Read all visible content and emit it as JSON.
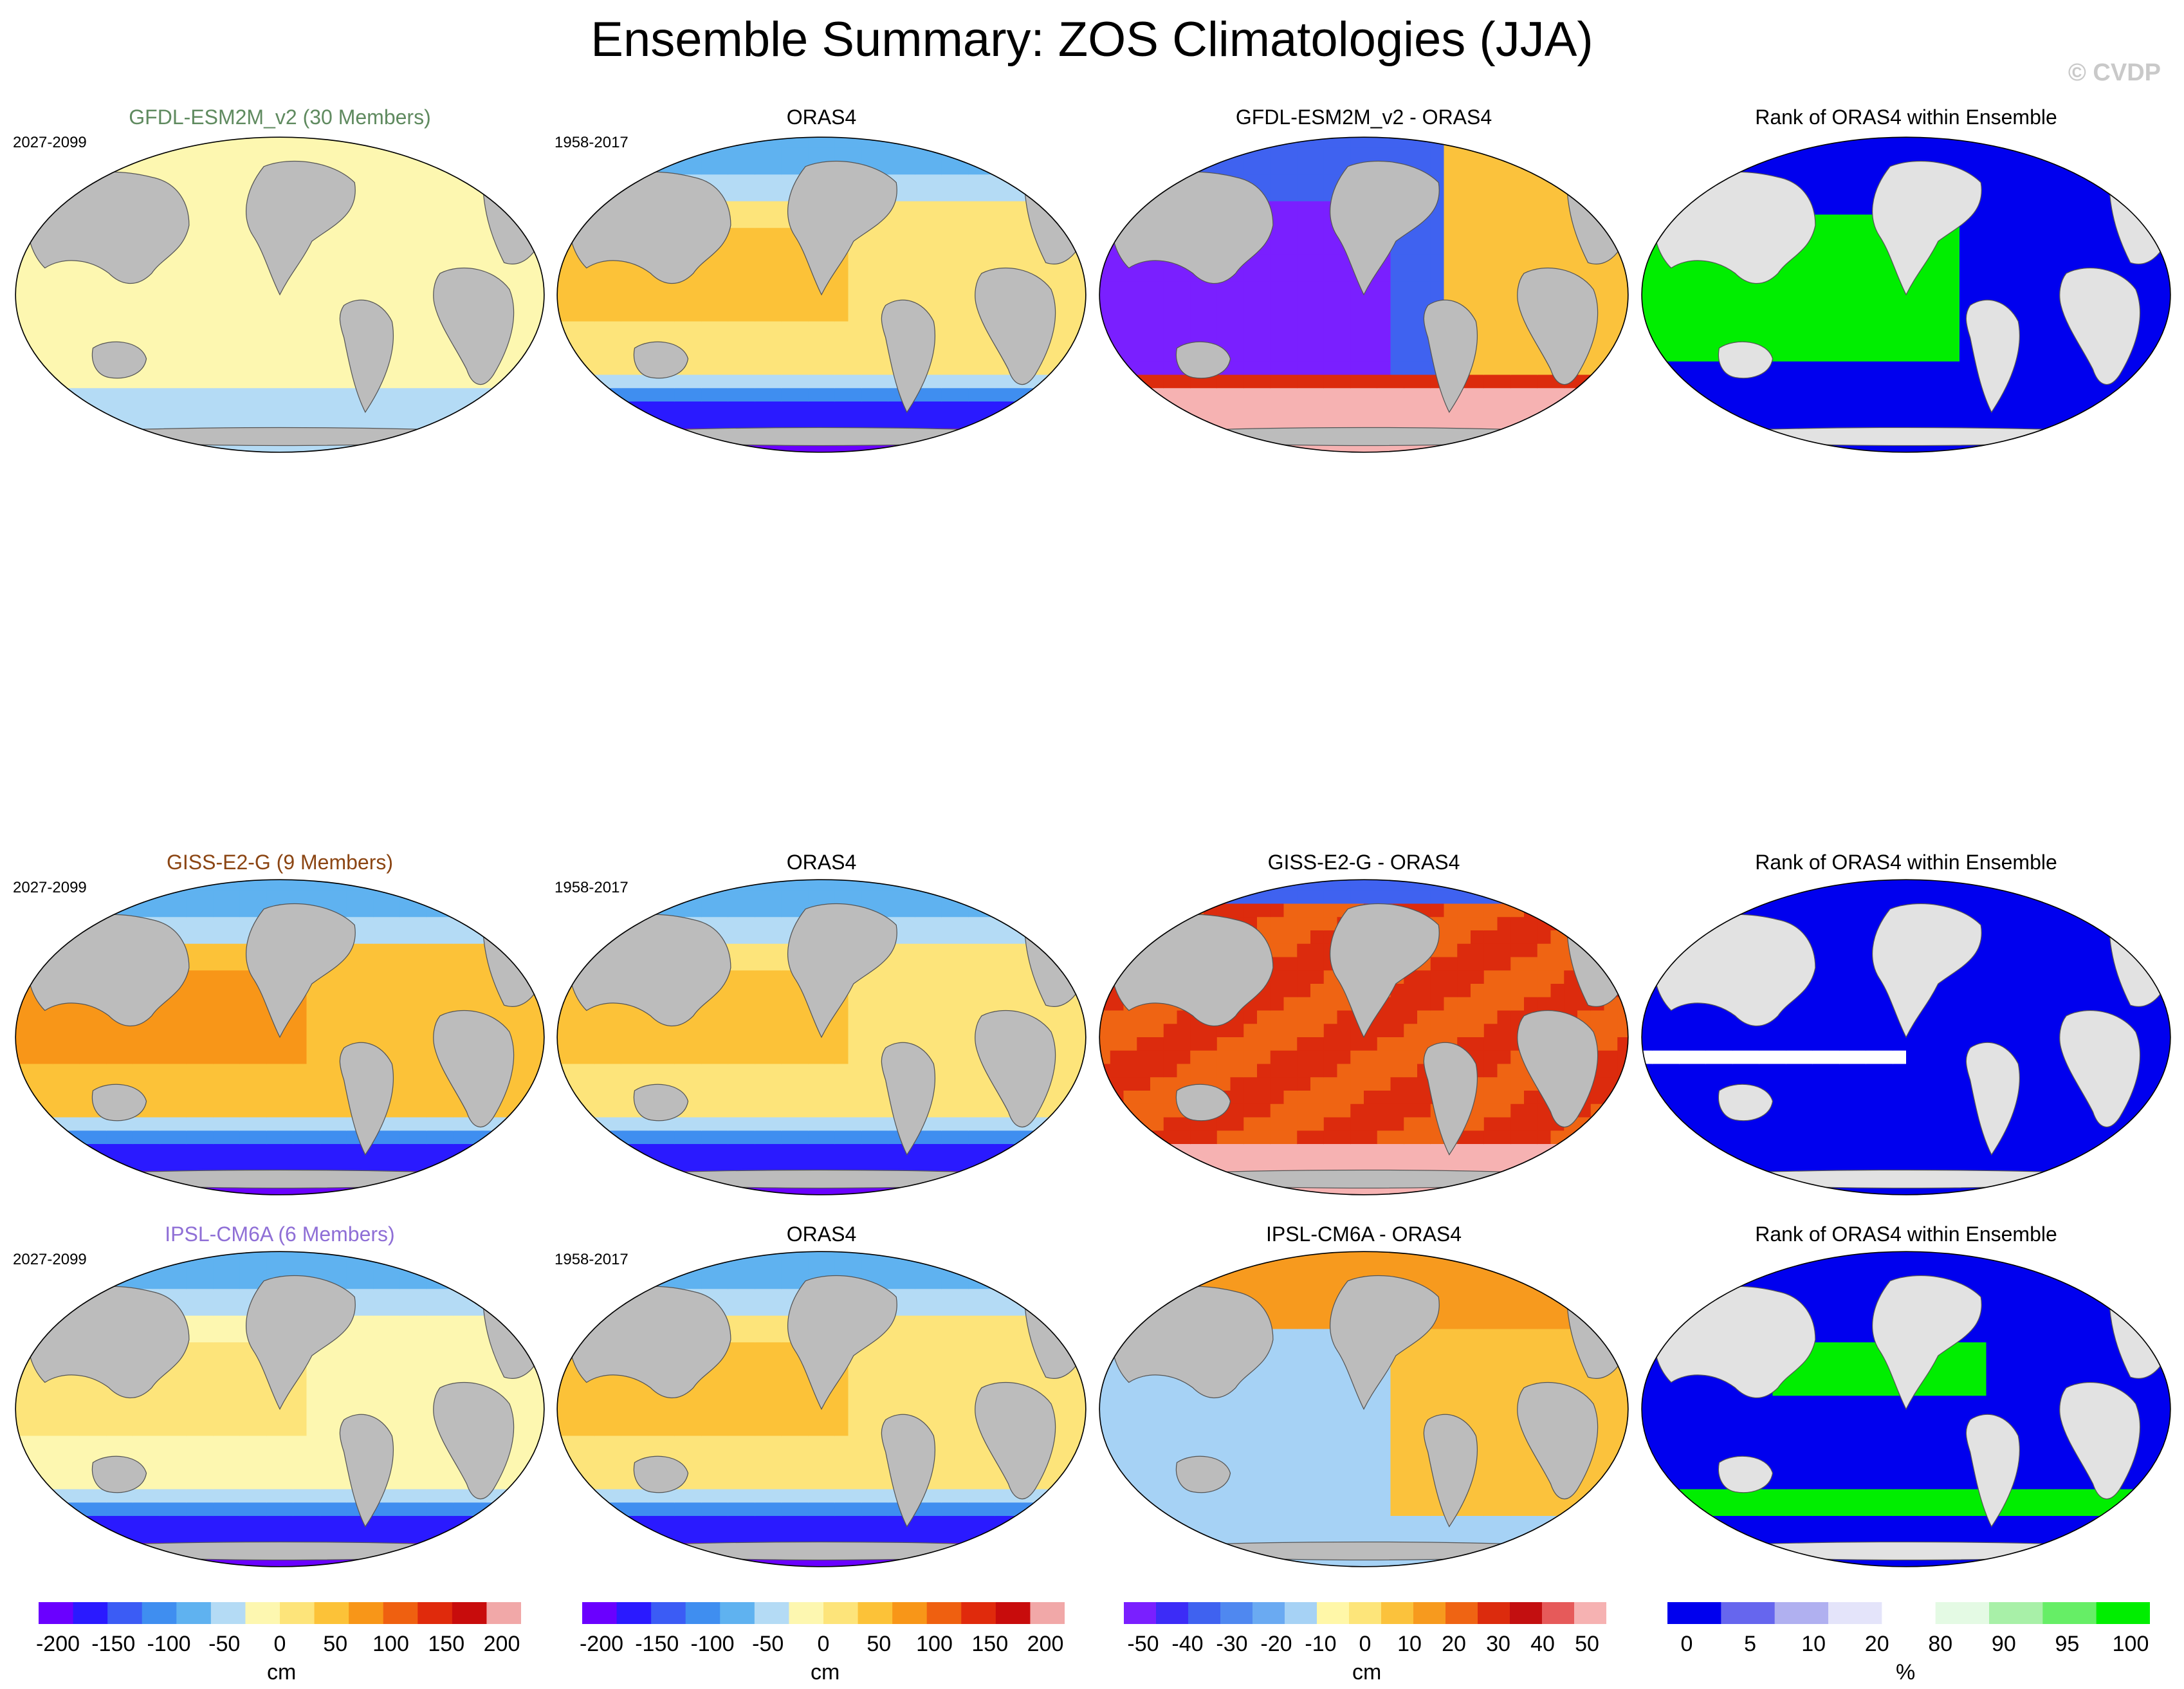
{
  "title": "Ensemble Summary: ZOS Climatologies (JJA)",
  "watermark": "© CVDP",
  "colors": {
    "land": "#bcbcbc",
    "rank_land": "#e2e2e2",
    "rank_low": "#0000ee",
    "rank_high": "#00ee00",
    "member_label_gfdl": "#5f8a5f",
    "member_label_giss": "#8b4513",
    "member_label_ipsl": "#8f6fd6"
  },
  "rows": [
    {
      "panels": [
        {
          "title": "GFDL-ESM2M_v2 (30 Members)",
          "period": "2027-2099",
          "kind": "gfdl"
        },
        {
          "title": "ORAS4",
          "period": "1958-2017",
          "kind": "oras"
        },
        {
          "title": "GFDL-ESM2M_v2 - ORAS4",
          "period": "",
          "kind": "diff_gfdl"
        },
        {
          "title": "Rank of ORAS4 within Ensemble",
          "period": "",
          "kind": "rank_gfdl"
        }
      ]
    },
    {
      "panels": [
        {
          "title": "GISS-E2-G (9 Members)",
          "period": "2027-2099",
          "kind": "giss"
        },
        {
          "title": "ORAS4",
          "period": "1958-2017",
          "kind": "oras"
        },
        {
          "title": "GISS-E2-G - ORAS4",
          "period": "",
          "kind": "diff_giss"
        },
        {
          "title": "Rank of ORAS4 within Ensemble",
          "period": "",
          "kind": "rank_giss"
        }
      ]
    },
    {
      "panels": [
        {
          "title": "IPSL-CM6A (6 Members)",
          "period": "2027-2099",
          "kind": "ipsl"
        },
        {
          "title": "ORAS4",
          "period": "1958-2017",
          "kind": "oras"
        },
        {
          "title": "IPSL-CM6A - ORAS4",
          "period": "",
          "kind": "diff_ipsl"
        },
        {
          "title": "Rank of ORAS4 within Ensemble",
          "period": "",
          "kind": "rank_ipsl"
        }
      ]
    }
  ],
  "colorbars": [
    {
      "unit": "cm",
      "ticks": [
        "-200",
        "-150",
        "-100",
        "-50",
        "0",
        "50",
        "100",
        "150",
        "200"
      ],
      "palette": [
        "#6a00ff",
        "#2a1aff",
        "#3b5cf5",
        "#3f8ef0",
        "#5fb2f0",
        "#b4dbf5",
        "#fdf7b0",
        "#fde47a",
        "#fcc238",
        "#f89618",
        "#ef6010",
        "#e02a0c",
        "#c80c0c",
        "#f1a8a8"
      ]
    },
    {
      "unit": "cm",
      "ticks": [
        "-200",
        "-150",
        "-100",
        "-50",
        "0",
        "50",
        "100",
        "150",
        "200"
      ],
      "palette": [
        "#6a00ff",
        "#2a1aff",
        "#3b5cf5",
        "#3f8ef0",
        "#5fb2f0",
        "#b4dbf5",
        "#fdf7b0",
        "#fde47a",
        "#fcc238",
        "#f89618",
        "#ef6010",
        "#e02a0c",
        "#c80c0c",
        "#f1a8a8"
      ]
    },
    {
      "unit": "cm",
      "ticks": [
        "-50",
        "-40",
        "-30",
        "-20",
        "-10",
        "0",
        "10",
        "20",
        "30",
        "40",
        "50"
      ],
      "palette": [
        "#7a1fff",
        "#3c2cf7",
        "#3f62f0",
        "#4f88f0",
        "#6aaaf2",
        "#a6d2f5",
        "#fff7a8",
        "#fde57a",
        "#fbc23c",
        "#f79a1e",
        "#ef6413",
        "#dc2b0d",
        "#c30f10",
        "#e65a5a",
        "#f6b2b2"
      ]
    },
    {
      "unit": "%",
      "ticks": [
        "0",
        "5",
        "10",
        "20",
        "80",
        "90",
        "95",
        "100"
      ],
      "palette": [
        "#0000ee",
        "#6666ee",
        "#b0b0f0",
        "#e4e4fa",
        "#ffffff",
        "#e4fae4",
        "#a8f0a8",
        "#66ee66",
        "#00ee00"
      ]
    }
  ]
}
